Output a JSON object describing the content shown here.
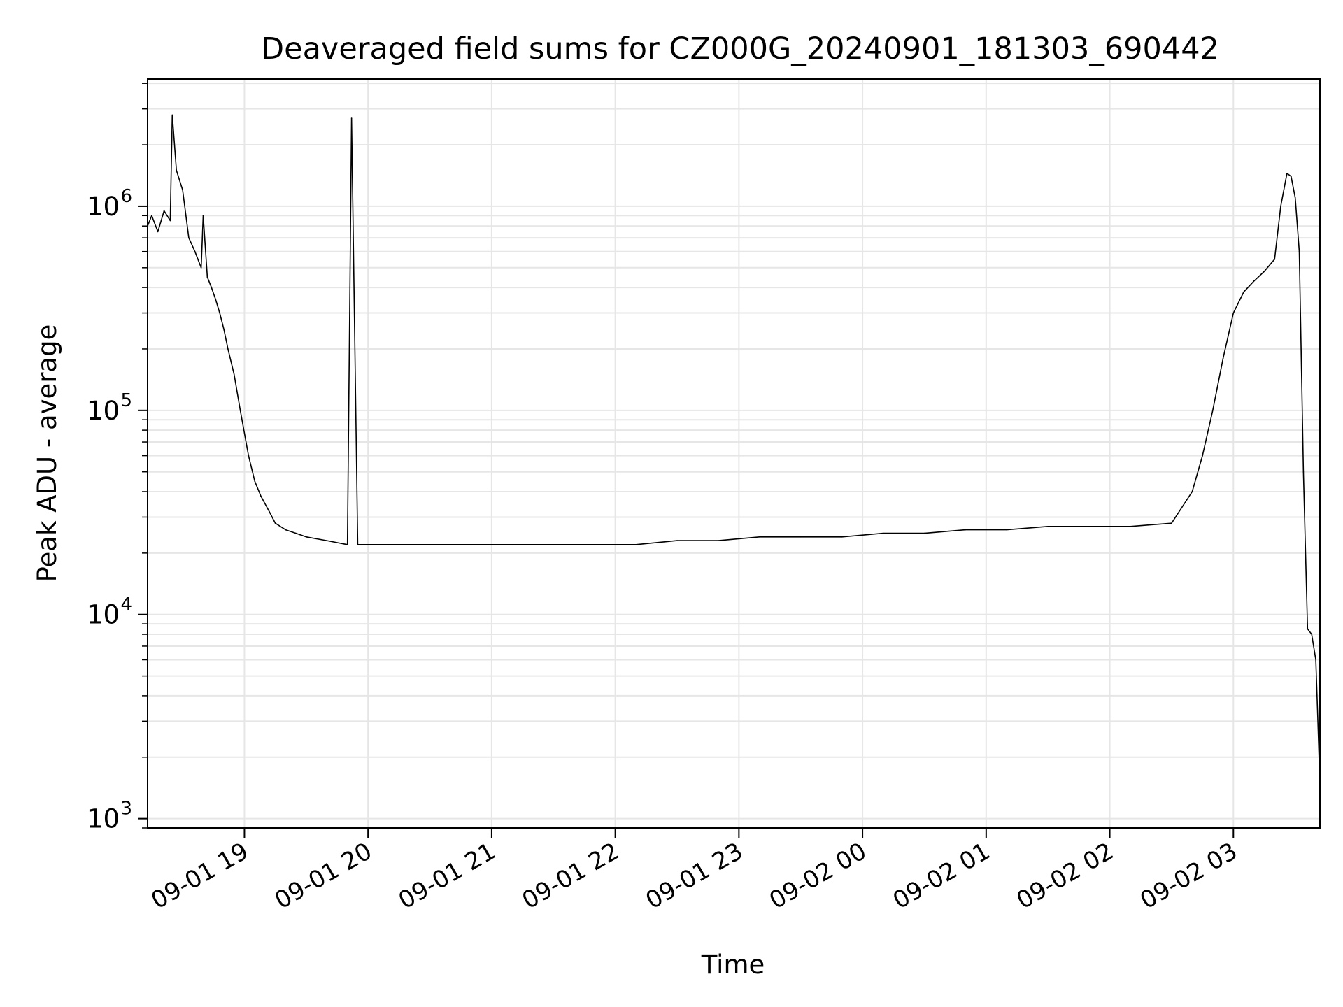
{
  "chart_data": {
    "type": "line",
    "title": "Deaveraged field sums for CZ000G_20240901_181303_690442",
    "xlabel": "Time",
    "ylabel": "Peak ADU - average",
    "yscale": "log",
    "ylim": [
      900,
      4200000
    ],
    "xlim": [
      "2024-09-01 18:13",
      "2024-09-02 03:42"
    ],
    "grid": true,
    "legend": "none",
    "line_color": "#000000",
    "grid_color": "#e6e6e6",
    "x_ticks": [
      {
        "value": "2024-09-01 19:00",
        "label": "09-01 19"
      },
      {
        "value": "2024-09-01 20:00",
        "label": "09-01 20"
      },
      {
        "value": "2024-09-01 21:00",
        "label": "09-01 21"
      },
      {
        "value": "2024-09-01 22:00",
        "label": "09-01 22"
      },
      {
        "value": "2024-09-01 23:00",
        "label": "09-01 23"
      },
      {
        "value": "2024-09-02 00:00",
        "label": "09-02 00"
      },
      {
        "value": "2024-09-02 01:00",
        "label": "09-02 01"
      },
      {
        "value": "2024-09-02 02:00",
        "label": "09-02 02"
      },
      {
        "value": "2024-09-02 03:00",
        "label": "09-02 03"
      }
    ],
    "y_ticks": [
      {
        "value": 1000,
        "base": "10",
        "exp": "3"
      },
      {
        "value": 10000,
        "base": "10",
        "exp": "4"
      },
      {
        "value": 100000,
        "base": "10",
        "exp": "5"
      },
      {
        "value": 1000000,
        "base": "10",
        "exp": "6"
      }
    ],
    "series": [
      {
        "x": [
          "2024-09-01 18:13",
          "2024-09-01 18:15",
          "2024-09-01 18:18",
          "2024-09-01 18:21",
          "2024-09-01 18:24",
          "2024-09-01 18:25",
          "2024-09-01 18:27",
          "2024-09-01 18:30",
          "2024-09-01 18:33",
          "2024-09-01 18:36",
          "2024-09-01 18:39",
          "2024-09-01 18:40",
          "2024-09-01 18:42",
          "2024-09-01 18:44",
          "2024-09-01 18:46",
          "2024-09-01 18:48",
          "2024-09-01 18:50",
          "2024-09-01 18:52",
          "2024-09-01 18:55",
          "2024-09-01 18:58",
          "2024-09-01 19:02",
          "2024-09-01 19:05",
          "2024-09-01 19:08",
          "2024-09-01 19:12",
          "2024-09-01 19:15",
          "2024-09-01 19:20",
          "2024-09-01 19:25",
          "2024-09-01 19:30",
          "2024-09-01 19:40",
          "2024-09-01 19:50",
          "2024-09-01 19:52",
          "2024-09-01 19:55",
          "2024-09-01 20:10",
          "2024-09-01 20:30",
          "2024-09-01 20:50",
          "2024-09-01 21:10",
          "2024-09-01 21:30",
          "2024-09-01 21:50",
          "2024-09-01 22:10",
          "2024-09-01 22:30",
          "2024-09-01 22:50",
          "2024-09-01 23:10",
          "2024-09-01 23:30",
          "2024-09-01 23:50",
          "2024-09-02 00:10",
          "2024-09-02 00:30",
          "2024-09-02 00:50",
          "2024-09-02 01:10",
          "2024-09-02 01:30",
          "2024-09-02 01:50",
          "2024-09-02 02:10",
          "2024-09-02 02:30",
          "2024-09-02 02:40",
          "2024-09-02 02:45",
          "2024-09-02 02:50",
          "2024-09-02 02:55",
          "2024-09-02 03:00",
          "2024-09-02 03:05",
          "2024-09-02 03:10",
          "2024-09-02 03:15",
          "2024-09-02 03:20",
          "2024-09-02 03:23",
          "2024-09-02 03:26",
          "2024-09-02 03:28",
          "2024-09-02 03:30",
          "2024-09-02 03:32",
          "2024-09-02 03:34",
          "2024-09-02 03:36",
          "2024-09-02 03:38",
          "2024-09-02 03:40",
          "2024-09-02 03:42"
        ],
        "y": [
          800000,
          900000,
          750000,
          950000,
          850000,
          2800000,
          1500000,
          1200000,
          700000,
          600000,
          500000,
          900000,
          450000,
          400000,
          350000,
          300000,
          250000,
          200000,
          150000,
          100000,
          60000,
          45000,
          38000,
          32000,
          28000,
          26000,
          25000,
          24000,
          23000,
          22000,
          2700000,
          22000,
          22000,
          22000,
          22000,
          22000,
          22000,
          22000,
          22000,
          23000,
          23000,
          24000,
          24000,
          24000,
          25000,
          25000,
          26000,
          26000,
          27000,
          27000,
          27000,
          28000,
          40000,
          60000,
          100000,
          180000,
          300000,
          380000,
          430000,
          480000,
          550000,
          1000000,
          1450000,
          1400000,
          1100000,
          600000,
          50000,
          8500,
          8000,
          6000,
          1500
        ]
      }
    ]
  }
}
